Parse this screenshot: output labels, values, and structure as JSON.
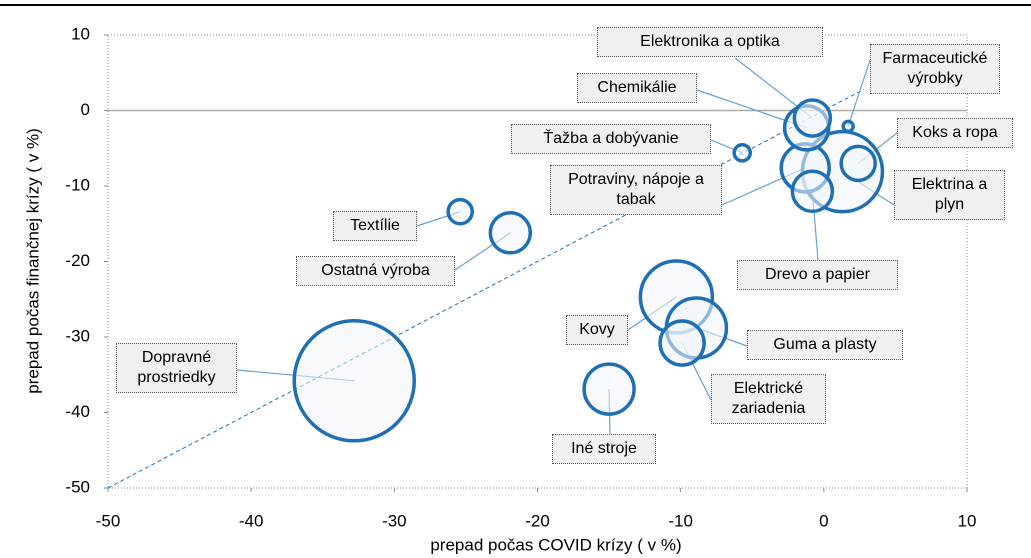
{
  "chart_data": {
    "type": "bubble",
    "xlabel": "prepad počas COVID krízy ( v %)",
    "ylabel": "prepad počas finančnej krízy ( v %)",
    "labels": [
      "Dopravné prostriedky",
      "Textílie",
      "Ostatná výroba",
      "Kovy",
      "Guma a plasty",
      "Elektrické zariadenia",
      "Iné stroje",
      "Drevo a papier",
      "Potraviny, nápoje a tabak",
      "Elektrina a plyn",
      "Koks a ropa",
      "Chemikálie",
      "Elektronika a optika",
      "Farmaceutické výrobky",
      "Ťažba a dobývanie"
    ],
    "x": [
      -32.8,
      -25.4,
      -21.9,
      -10.3,
      -8.9,
      -9.9,
      -15.0,
      -0.8,
      -1.3,
      1.3,
      2.4,
      -1.2,
      -0.8,
      1.7,
      -5.7
    ],
    "y": [
      -35.8,
      -13.4,
      -16.2,
      -24.7,
      -28.8,
      -30.8,
      -36.9,
      -10.7,
      -7.6,
      -8.1,
      -7.0,
      -2.3,
      -1.0,
      -2.1,
      -5.6
    ],
    "sizes": [
      144,
      5.8,
      16,
      51.8,
      36,
      19.4,
      25,
      16,
      23,
      64,
      11.6,
      19.4,
      13,
      1,
      2.6
    ],
    "color": "#1f6fb5",
    "xlim": [
      -50,
      10
    ],
    "xticks": [
      -50,
      -40,
      -30,
      -20,
      -10,
      0,
      10
    ],
    "ylim": [
      -50,
      10
    ],
    "yticks": [
      -50,
      -40,
      -30,
      -20,
      -10,
      0,
      10
    ],
    "diagonal": true
  }
}
